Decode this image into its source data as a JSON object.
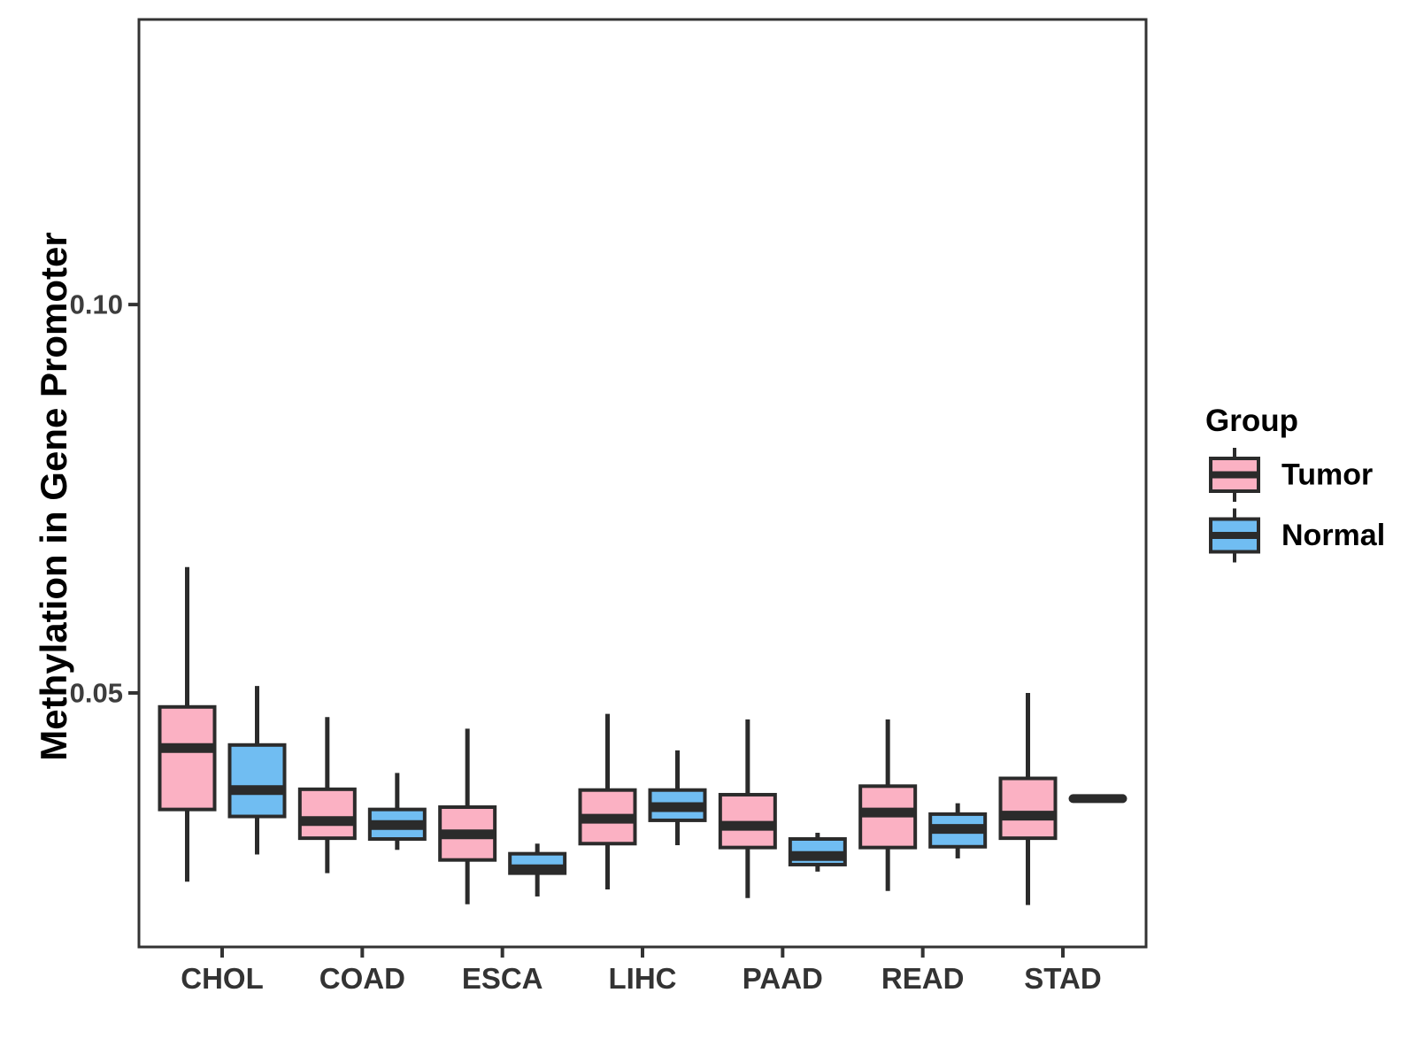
{
  "chart_data": {
    "type": "grouped_boxplot",
    "title": "",
    "xlabel": "",
    "ylabel": "Methylation in Gene Promoter",
    "categories": [
      "CHOL",
      "COAD",
      "ESCA",
      "LIHC",
      "PAAD",
      "READ",
      "STAD"
    ],
    "y_ticks": [
      {
        "label": "0.05",
        "value": 0.05
      },
      {
        "label": "0.10",
        "value": 0.1
      }
    ],
    "ylim": [
      0.0173,
      0.1367
    ],
    "grid": "off",
    "legend": {
      "title": "Group",
      "position": "right",
      "entries": [
        {
          "label": "Tumor",
          "color": "#FBB1C3"
        },
        {
          "label": "Normal",
          "color": "#70BDF2"
        }
      ]
    },
    "colors": {
      "tumor_fill": "#FBB1C3",
      "normal_fill": "#70BDF2",
      "box_stroke": "#2B2B2B",
      "panel_border": "#333333",
      "tick_label": "#3D3D3D",
      "category_label": "#333333",
      "axis_title": "#000000",
      "background": "#FFFFFF"
    },
    "series": [
      {
        "name": "Tumor",
        "boxes": [
          {
            "category": "CHOL",
            "whisker_low": 0.0257,
            "q1": 0.035,
            "median": 0.0429,
            "q3": 0.0482,
            "whisker_high": 0.0662
          },
          {
            "category": "COAD",
            "whisker_low": 0.0268,
            "q1": 0.0313,
            "median": 0.0335,
            "q3": 0.0376,
            "whisker_high": 0.0469
          },
          {
            "category": "ESCA",
            "whisker_low": 0.0228,
            "q1": 0.0285,
            "median": 0.0318,
            "q3": 0.0353,
            "whisker_high": 0.0454
          },
          {
            "category": "LIHC",
            "whisker_low": 0.0247,
            "q1": 0.0306,
            "median": 0.0338,
            "q3": 0.0375,
            "whisker_high": 0.0473
          },
          {
            "category": "PAAD",
            "whisker_low": 0.0236,
            "q1": 0.0301,
            "median": 0.0329,
            "q3": 0.0369,
            "whisker_high": 0.0466
          },
          {
            "category": "READ",
            "whisker_low": 0.0245,
            "q1": 0.0301,
            "median": 0.0346,
            "q3": 0.038,
            "whisker_high": 0.0466
          },
          {
            "category": "STAD",
            "whisker_low": 0.0227,
            "q1": 0.0313,
            "median": 0.0342,
            "q3": 0.039,
            "whisker_high": 0.05
          }
        ]
      },
      {
        "name": "Normal",
        "boxes": [
          {
            "category": "CHOL",
            "whisker_low": 0.0292,
            "q1": 0.0341,
            "median": 0.0375,
            "q3": 0.0433,
            "whisker_high": 0.0509
          },
          {
            "category": "COAD",
            "whisker_low": 0.0298,
            "q1": 0.0312,
            "median": 0.033,
            "q3": 0.035,
            "whisker_high": 0.0397
          },
          {
            "category": "ESCA",
            "whisker_low": 0.0238,
            "q1": 0.0268,
            "median": 0.0273,
            "q3": 0.0293,
            "whisker_high": 0.0306
          },
          {
            "category": "LIHC",
            "whisker_low": 0.0304,
            "q1": 0.0336,
            "median": 0.0353,
            "q3": 0.0375,
            "whisker_high": 0.0426
          },
          {
            "category": "PAAD",
            "whisker_low": 0.027,
            "q1": 0.0279,
            "median": 0.029,
            "q3": 0.0312,
            "whisker_high": 0.032
          },
          {
            "category": "READ",
            "whisker_low": 0.0287,
            "q1": 0.0302,
            "median": 0.0325,
            "q3": 0.0344,
            "whisker_high": 0.0358
          },
          {
            "category": "STAD",
            "single_value": 0.0364
          }
        ]
      }
    ]
  }
}
